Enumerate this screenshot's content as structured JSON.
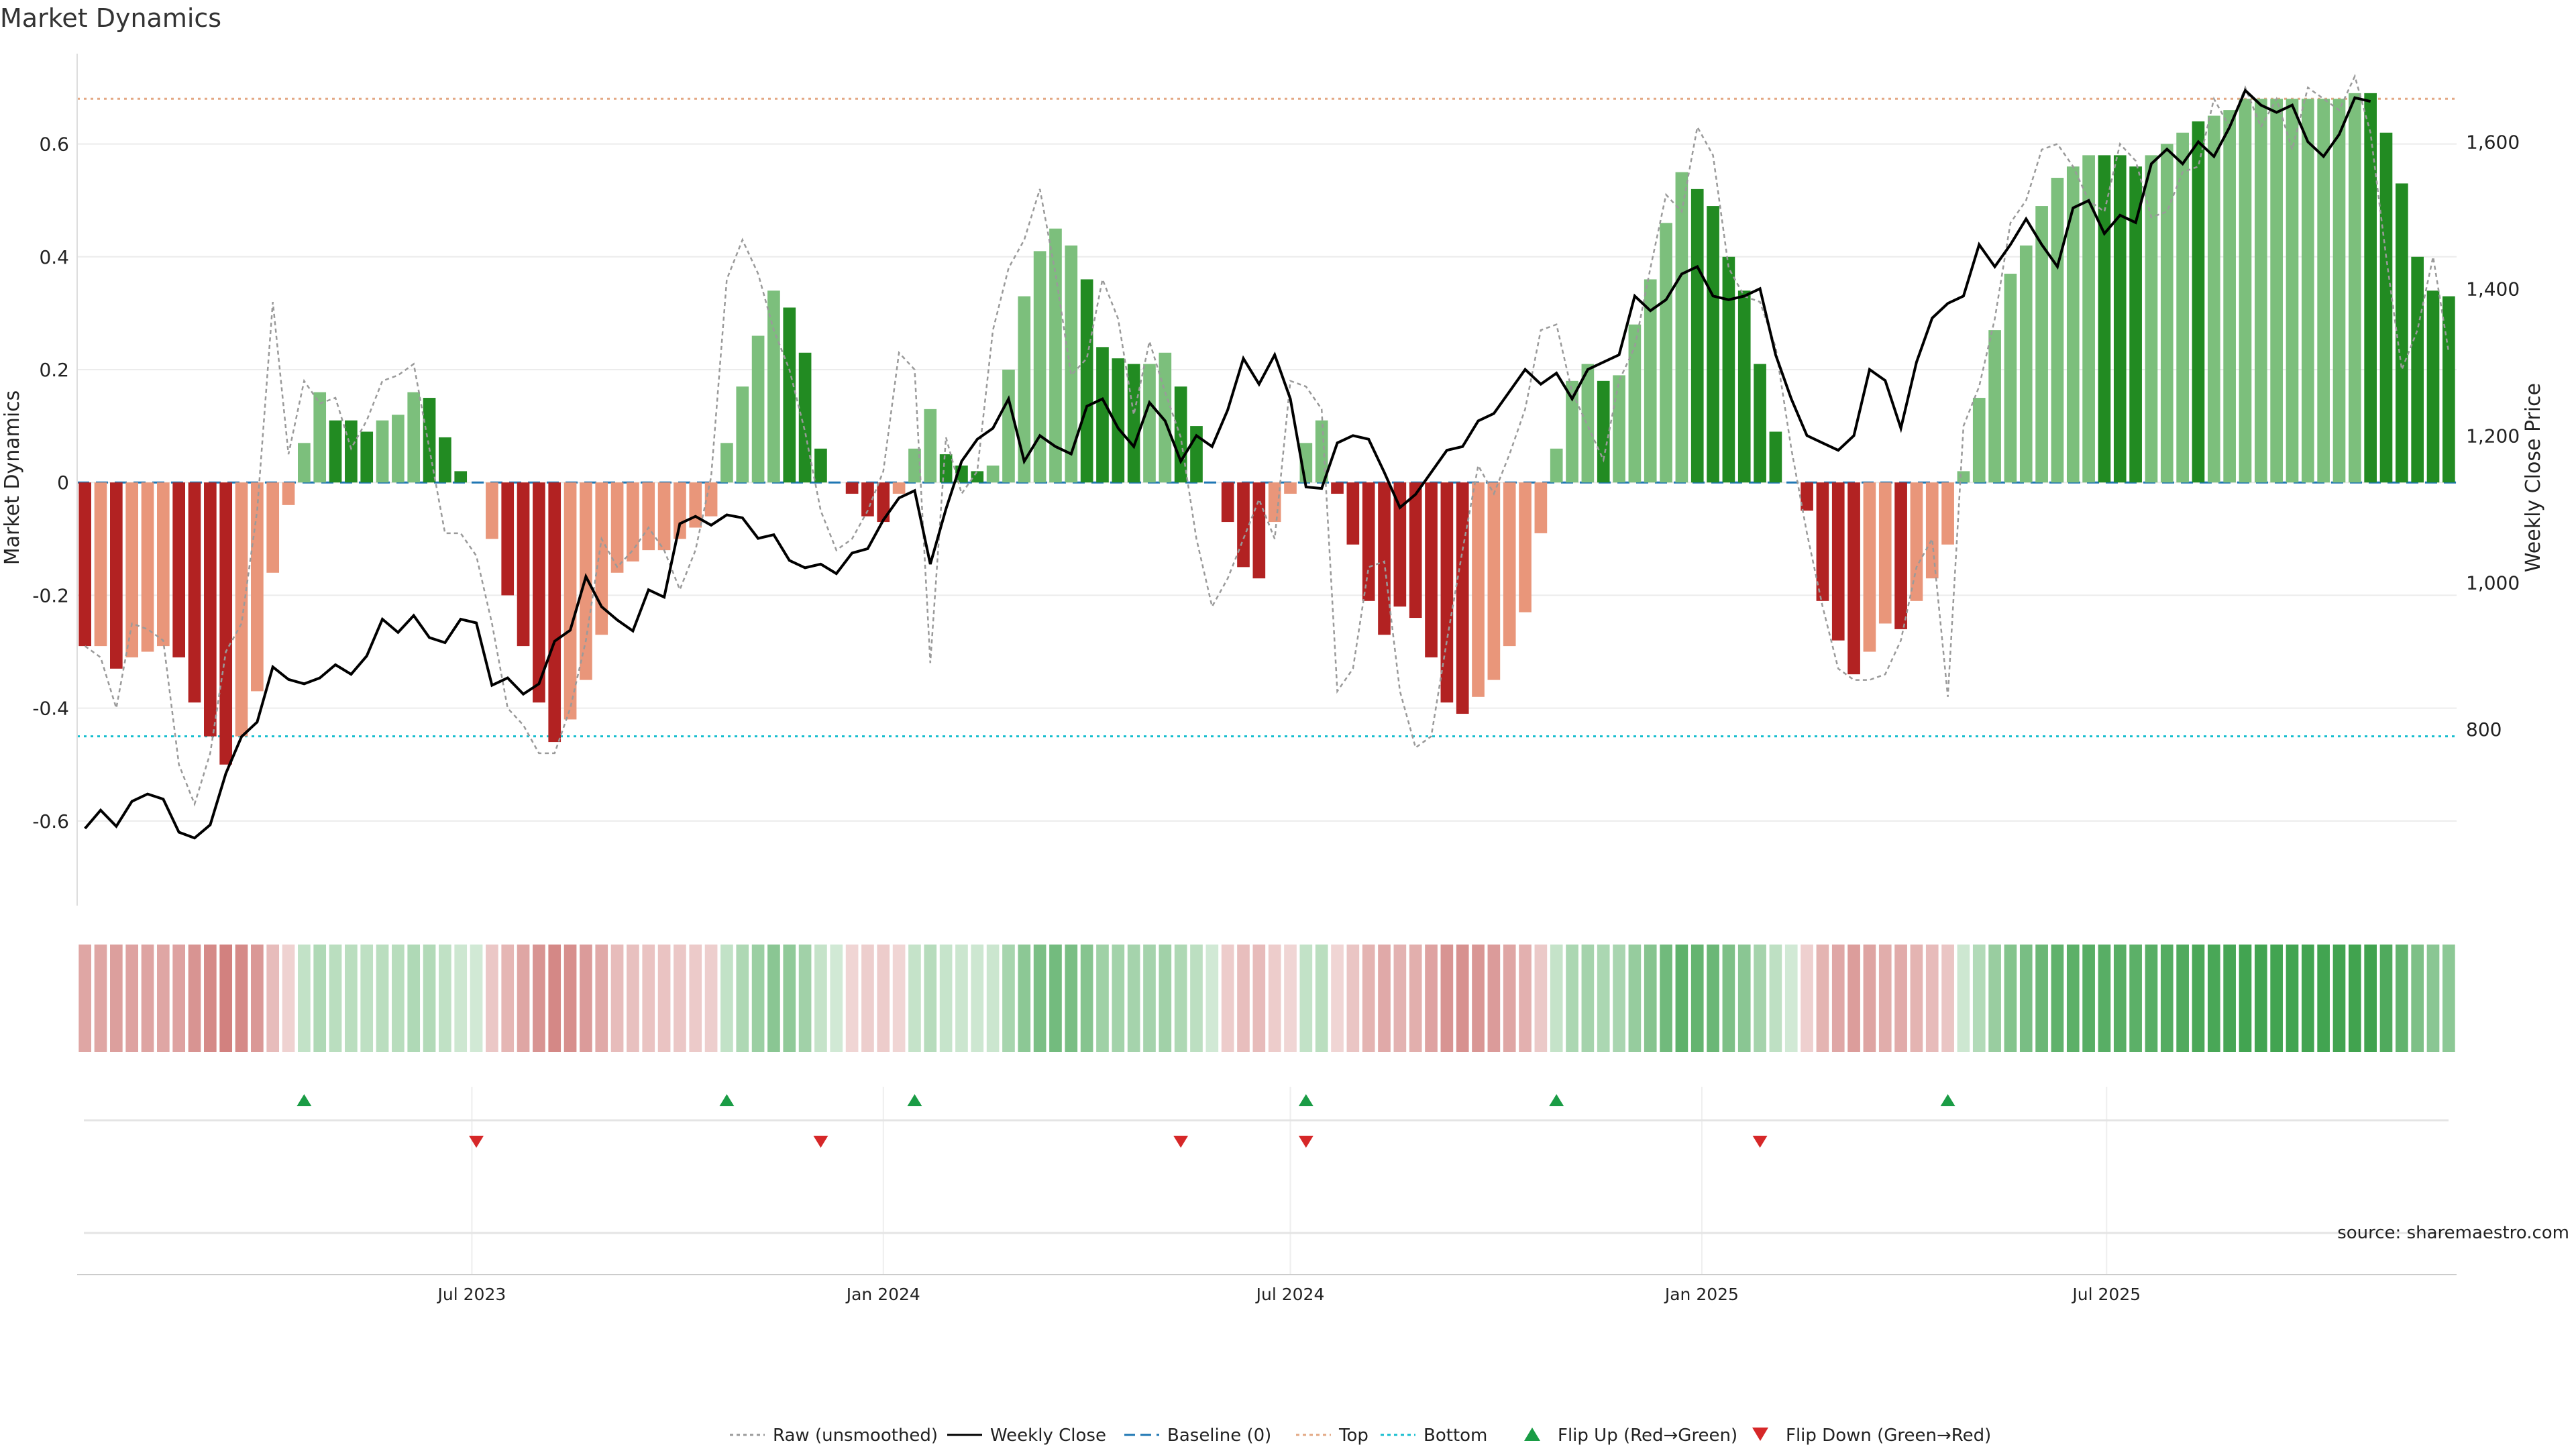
{
  "title": "Market Dynamics",
  "source": "source: sharemaestro.com",
  "colors": {
    "strong_green": "#228b22",
    "light_green": "#7cbf7c",
    "strong_red": "#b22222",
    "light_red": "#e9967a",
    "raw": "#9a9a9a",
    "close": "#000000",
    "baseline": "#1f77b4",
    "top": "#e3a884",
    "bottom": "#17becf",
    "flip_up": "#1a9c45",
    "flip_down": "#d62728",
    "heat_green": "#2e9a3e",
    "heat_red": "#c0504d"
  },
  "legend": [
    {
      "label": "Raw (unsmoothed)",
      "kind": "dotted-line",
      "color": "#9a9a9a"
    },
    {
      "label": "Weekly Close",
      "kind": "line",
      "color": "#000000"
    },
    {
      "label": "Baseline (0)",
      "kind": "dashed-line",
      "color": "#1f77b4"
    },
    {
      "label": "Top",
      "kind": "dotted-line",
      "color": "#e3a884"
    },
    {
      "label": "Bottom",
      "kind": "dotted-line",
      "color": "#17becf"
    },
    {
      "label": "Flip Up (Red→Green)",
      "kind": "triangle-up",
      "color": "#1a9c45"
    },
    {
      "label": "Flip Down (Green→Red)",
      "kind": "triangle-down",
      "color": "#d62728"
    }
  ],
  "chart_data": {
    "type": "bar",
    "ylabel": "Market Dynamics",
    "y2label": "Weekly Close Price",
    "ylim": [
      -0.75,
      0.76
    ],
    "y2lim": [
      560,
      1720
    ],
    "yticks": [
      -0.6,
      -0.4,
      -0.2,
      0,
      0.2,
      0.4,
      0.6
    ],
    "ytick_labels": [
      "-0.6",
      "-0.4",
      "-0.2",
      "0",
      "0.2",
      "0.4",
      "0.6"
    ],
    "y2ticks": [
      800,
      1000,
      1200,
      1400,
      1600
    ],
    "y2tick_labels": [
      "800",
      "1,000",
      "1,200",
      "1,400",
      "1,600"
    ],
    "top_line": 0.68,
    "bottom_line": -0.45,
    "start_date": "2023-01-09",
    "interval_days": 7,
    "xticks": [
      "2023-07-01",
      "2024-01-01",
      "2024-07-01",
      "2025-01-01",
      "2025-07-01"
    ],
    "xtick_labels": [
      "Jul 2023",
      "Jan 2024",
      "Jul 2024",
      "Jan 2025",
      "Jul 2025"
    ],
    "grid": true,
    "legend_position": "bottom",
    "series": [
      {
        "name": "Market Dynamics",
        "values": [
          -0.29,
          -0.29,
          -0.33,
          -0.31,
          -0.3,
          -0.29,
          -0.31,
          -0.39,
          -0.45,
          -0.5,
          -0.45,
          -0.37,
          -0.16,
          -0.04,
          0.07,
          0.16,
          0.11,
          0.11,
          0.09,
          0.11,
          0.12,
          0.16,
          0.15,
          0.08,
          0.02,
          0.0,
          -0.1,
          -0.2,
          -0.29,
          -0.39,
          -0.46,
          -0.42,
          -0.35,
          -0.27,
          -0.16,
          -0.14,
          -0.12,
          -0.12,
          -0.1,
          -0.08,
          -0.06,
          0.07,
          0.17,
          0.26,
          0.34,
          0.31,
          0.23,
          0.06,
          0.0,
          -0.02,
          -0.06,
          -0.07,
          -0.02,
          0.06,
          0.13,
          0.05,
          0.03,
          0.02,
          0.03,
          0.2,
          0.33,
          0.41,
          0.45,
          0.42,
          0.36,
          0.24,
          0.22,
          0.21,
          0.21,
          0.23,
          0.17,
          0.1,
          0.0,
          -0.07,
          -0.15,
          -0.17,
          -0.07,
          -0.02,
          0.07,
          0.11,
          -0.02,
          -0.11,
          -0.21,
          -0.27,
          -0.22,
          -0.24,
          -0.31,
          -0.39,
          -0.41,
          -0.38,
          -0.35,
          -0.29,
          -0.23,
          -0.09,
          0.06,
          0.18,
          0.21,
          0.18,
          0.19,
          0.28,
          0.36,
          0.46,
          0.55,
          0.52,
          0.49,
          0.4,
          0.34,
          0.21,
          0.09,
          0.0,
          -0.05,
          -0.21,
          -0.28,
          -0.34,
          -0.3,
          -0.25,
          -0.26,
          -0.21,
          -0.17,
          -0.11,
          0.02,
          0.15,
          0.27,
          0.37,
          0.42,
          0.49,
          0.54,
          0.56,
          0.58,
          0.58,
          0.58,
          0.56,
          0.58,
          0.6,
          0.62,
          0.64,
          0.65,
          0.66,
          0.68,
          0.68,
          0.68,
          0.68,
          0.68,
          0.68,
          0.68,
          0.69,
          0.69,
          0.62,
          0.53,
          0.4,
          0.34,
          0.33
        ],
        "colors": [
          "r",
          "l",
          "r",
          "l",
          "l",
          "l",
          "r",
          "r",
          "r",
          "r",
          "l",
          "l",
          "l",
          "l",
          "g",
          "g",
          "G",
          "G",
          "G",
          "g",
          "g",
          "g",
          "G",
          "G",
          "G",
          "n",
          "l",
          "r",
          "r",
          "r",
          "r",
          "l",
          "l",
          "l",
          "l",
          "l",
          "l",
          "l",
          "l",
          "l",
          "l",
          "g",
          "g",
          "g",
          "g",
          "G",
          "G",
          "G",
          "n",
          "r",
          "r",
          "r",
          "l",
          "g",
          "g",
          "G",
          "G",
          "G",
          "g",
          "g",
          "g",
          "g",
          "g",
          "g",
          "G",
          "G",
          "G",
          "G",
          "g",
          "g",
          "G",
          "G",
          "n",
          "r",
          "r",
          "r",
          "l",
          "l",
          "g",
          "g",
          "r",
          "r",
          "r",
          "r",
          "r",
          "r",
          "r",
          "r",
          "r",
          "l",
          "l",
          "l",
          "l",
          "l",
          "g",
          "g",
          "g",
          "G",
          "g",
          "g",
          "g",
          "g",
          "g",
          "G",
          "G",
          "G",
          "G",
          "G",
          "G",
          "n",
          "r",
          "r",
          "r",
          "r",
          "l",
          "l",
          "r",
          "l",
          "l",
          "l",
          "g",
          "g",
          "g",
          "g",
          "g",
          "g",
          "g",
          "g",
          "g",
          "G",
          "G",
          "G",
          "g",
          "g",
          "g",
          "G",
          "g",
          "g",
          "g",
          "g",
          "g",
          "g",
          "g",
          "g",
          "g",
          "g",
          "G",
          "G",
          "G",
          "G",
          "G",
          "G"
        ]
      },
      {
        "name": "Raw (unsmoothed)",
        "values": [
          -0.29,
          -0.31,
          -0.4,
          -0.25,
          -0.26,
          -0.28,
          -0.5,
          -0.57,
          -0.48,
          -0.3,
          -0.25,
          -0.05,
          0.32,
          0.05,
          0.18,
          0.14,
          0.15,
          0.06,
          0.11,
          0.18,
          0.19,
          0.21,
          0.06,
          -0.09,
          -0.09,
          -0.13,
          -0.25,
          -0.4,
          -0.43,
          -0.48,
          -0.48,
          -0.4,
          -0.28,
          -0.1,
          -0.15,
          -0.12,
          -0.08,
          -0.12,
          -0.19,
          -0.12,
          0.01,
          0.36,
          0.43,
          0.37,
          0.27,
          0.2,
          0.09,
          -0.05,
          -0.12,
          -0.1,
          -0.05,
          0.02,
          0.23,
          0.2,
          -0.32,
          0.08,
          -0.02,
          0.02,
          0.27,
          0.38,
          0.43,
          0.52,
          0.37,
          0.19,
          0.22,
          0.36,
          0.29,
          0.12,
          0.25,
          0.16,
          0.08,
          -0.1,
          -0.22,
          -0.17,
          -0.1,
          -0.03,
          -0.1,
          0.18,
          0.17,
          0.13,
          -0.37,
          -0.33,
          -0.15,
          -0.14,
          -0.37,
          -0.47,
          -0.45,
          -0.28,
          -0.12,
          0.03,
          -0.02,
          0.05,
          0.13,
          0.27,
          0.28,
          0.16,
          0.1,
          0.04,
          0.18,
          0.24,
          0.38,
          0.51,
          0.48,
          0.63,
          0.58,
          0.38,
          0.33,
          0.32,
          0.24,
          0.06,
          -0.09,
          -0.22,
          -0.33,
          -0.35,
          -0.35,
          -0.34,
          -0.28,
          -0.15,
          -0.1,
          -0.38,
          0.1,
          0.17,
          0.29,
          0.46,
          0.5,
          0.59,
          0.6,
          0.56,
          0.5,
          0.48,
          0.6,
          0.57,
          0.47,
          0.48,
          0.55,
          0.56,
          0.68,
          0.63,
          0.7,
          0.63,
          0.68,
          0.59,
          0.7,
          0.68,
          0.66,
          0.72,
          0.62,
          0.4,
          0.2,
          0.27,
          0.4,
          0.23
        ]
      },
      {
        "name": "Weekly Close",
        "values": [
          665,
          690,
          668,
          702,
          712,
          705,
          660,
          652,
          670,
          740,
          790,
          810,
          885,
          868,
          862,
          870,
          888,
          875,
          900,
          950,
          932,
          955,
          925,
          918,
          950,
          945,
          860,
          870,
          848,
          862,
          920,
          935,
          1008,
          967,
          949,
          934,
          990,
          980,
          1080,
          1090,
          1078,
          1092,
          1088,
          1060,
          1065,
          1030,
          1020,
          1025,
          1012,
          1040,
          1046,
          1085,
          1115,
          1125,
          1025,
          1100,
          1165,
          1195,
          1210,
          1250,
          1165,
          1200,
          1185,
          1175,
          1240,
          1250,
          1210,
          1185,
          1245,
          1220,
          1165,
          1200,
          1185,
          1235,
          1305,
          1270,
          1310,
          1250,
          1130,
          1128,
          1190,
          1200,
          1195,
          1150,
          1102,
          1120,
          1150,
          1180,
          1185,
          1220,
          1230,
          1260,
          1290,
          1270,
          1285,
          1250,
          1290,
          1300,
          1310,
          1390,
          1370,
          1385,
          1420,
          1430,
          1390,
          1385,
          1390,
          1400,
          1310,
          1250,
          1200,
          1190,
          1180,
          1200,
          1290,
          1275,
          1210,
          1300,
          1360,
          1380,
          1390,
          1460,
          1430,
          1460,
          1495,
          1460,
          1430,
          1510,
          1520,
          1475,
          1500,
          1490,
          1570,
          1590,
          1570,
          1600,
          1580,
          1620,
          1670,
          1650,
          1640,
          1650,
          1600,
          1580,
          1610,
          1660,
          1655
        ]
      }
    ],
    "flip_up_index": [
      14,
      41,
      53,
      78,
      94,
      119
    ],
    "flip_down_index": [
      25,
      47,
      70,
      78,
      107
    ],
    "note": "colors codes: G = strong green, g = light green, r = strong red, l = light red, n = neutral"
  }
}
